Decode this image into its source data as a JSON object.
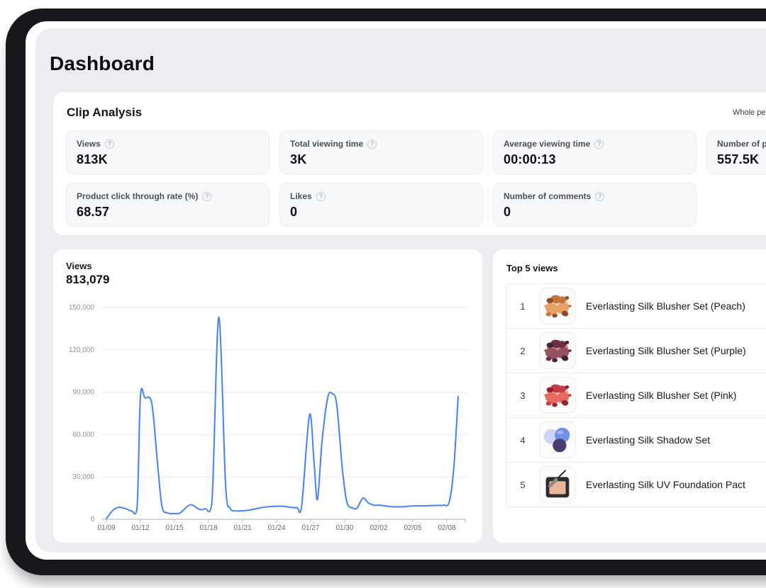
{
  "page": {
    "title": "Dashboard"
  },
  "clip_analysis": {
    "title": "Clip Analysis",
    "period_label": "Whole period",
    "stats": [
      {
        "label": "Views",
        "value": "813K"
      },
      {
        "label": "Total viewing time",
        "value": "3K"
      },
      {
        "label": "Average viewing time",
        "value": "00:00:13"
      },
      {
        "label": "Number of product clicks",
        "value": "557.5K"
      },
      {
        "label": "Product click through rate (%)",
        "value": "68.57"
      },
      {
        "label": "Likes",
        "value": "0"
      },
      {
        "label": "Number of comments",
        "value": "0"
      }
    ]
  },
  "chart_data": {
    "type": "line",
    "title": "Views",
    "total": "813,079",
    "xlabel": "",
    "ylabel": "",
    "x_unit": "days since 01/09",
    "ylim": [
      0,
      150000
    ],
    "xlim": [
      0,
      31.6
    ],
    "grid": true,
    "legend_position": "none",
    "line_color": "#4284f5",
    "grid_color": "#e9ebee",
    "axis_color": "#a9adb4",
    "ytick_color": "#8d929a",
    "xtick_color": "#63676d",
    "yticks": [
      {
        "value": 0,
        "label": "0"
      },
      {
        "value": 30000,
        "label": "30,000"
      },
      {
        "value": 60000,
        "label": "60,000"
      },
      {
        "value": 90000,
        "label": "90,000"
      },
      {
        "value": 120000,
        "label": "120,000"
      },
      {
        "value": 150000,
        "label": "150,000"
      }
    ],
    "xticks": [
      {
        "day": 0,
        "label": "01/09"
      },
      {
        "day": 3,
        "label": "01/12"
      },
      {
        "day": 6,
        "label": "01/15"
      },
      {
        "day": 9,
        "label": "01/18"
      },
      {
        "day": 12,
        "label": "01/21"
      },
      {
        "day": 15,
        "label": "01/24"
      },
      {
        "day": 18,
        "label": "01/27"
      },
      {
        "day": 21,
        "label": "01/30"
      },
      {
        "day": 24,
        "label": "02/02"
      },
      {
        "day": 27,
        "label": "02/05"
      },
      {
        "day": 30,
        "label": "02/08"
      }
    ],
    "series": [
      {
        "name": "Views",
        "points": [
          [
            0,
            500
          ],
          [
            0.6,
            6500
          ],
          [
            1.1,
            8500
          ],
          [
            1.7,
            7500
          ],
          [
            2.2,
            6000
          ],
          [
            2.7,
            8000
          ],
          [
            3.0,
            87000
          ],
          [
            3.4,
            86000
          ],
          [
            4.0,
            82000
          ],
          [
            4.5,
            40000
          ],
          [
            4.9,
            9000
          ],
          [
            5.4,
            4500
          ],
          [
            6.0,
            4000
          ],
          [
            6.5,
            4500
          ],
          [
            7.2,
            9500
          ],
          [
            7.6,
            10000
          ],
          [
            8.2,
            7000
          ],
          [
            8.7,
            7500
          ],
          [
            9.3,
            12000
          ],
          [
            9.9,
            143000
          ],
          [
            10.5,
            25000
          ],
          [
            10.9,
            8000
          ],
          [
            11.4,
            6000
          ],
          [
            12.0,
            6000
          ],
          [
            12.6,
            6500
          ],
          [
            13.2,
            7500
          ],
          [
            13.8,
            8500
          ],
          [
            14.4,
            9000
          ],
          [
            15.0,
            9200
          ],
          [
            15.6,
            9200
          ],
          [
            16.2,
            8500
          ],
          [
            16.8,
            8200
          ],
          [
            17.2,
            9000
          ],
          [
            17.9,
            74000
          ],
          [
            18.3,
            40000
          ],
          [
            18.6,
            14000
          ],
          [
            19.0,
            55000
          ],
          [
            19.5,
            86000
          ],
          [
            19.9,
            89000
          ],
          [
            20.3,
            81000
          ],
          [
            20.8,
            35000
          ],
          [
            21.2,
            12000
          ],
          [
            21.7,
            8000
          ],
          [
            22.1,
            8000
          ],
          [
            22.6,
            15000
          ],
          [
            23.1,
            11500
          ],
          [
            23.6,
            10000
          ],
          [
            24.1,
            10000
          ],
          [
            25.0,
            9000
          ],
          [
            26.0,
            8800
          ],
          [
            27.0,
            9500
          ],
          [
            28.0,
            9500
          ],
          [
            29.0,
            9800
          ],
          [
            29.7,
            10000
          ],
          [
            30.2,
            12000
          ],
          [
            30.6,
            35000
          ],
          [
            31.0,
            87000
          ]
        ]
      }
    ]
  },
  "top5": {
    "title": "Top 5 views",
    "items": [
      {
        "rank": "1",
        "name": "Everlasting Silk Blusher Set (Peach)",
        "thumb_style": "powder",
        "palette": [
          "#f5d2ae",
          "#e8a268",
          "#c4763f",
          "#8f4e26"
        ]
      },
      {
        "rank": "2",
        "name": "Everlasting Silk Blusher Set (Purple)",
        "thumb_style": "powder",
        "palette": [
          "#cf8f9b",
          "#96515f",
          "#6b3040",
          "#472337"
        ]
      },
      {
        "rank": "3",
        "name": "Everlasting Silk Blusher Set (Pink)",
        "thumb_style": "powder",
        "palette": [
          "#f5b5ac",
          "#e66a60",
          "#c43c45",
          "#93242f"
        ]
      },
      {
        "rank": "4",
        "name": "Everlasting Silk Shadow Set",
        "thumb_style": "pans",
        "palette": [
          "#ccd6f2",
          "#7291e9",
          "#4d3d6e"
        ]
      },
      {
        "rank": "5",
        "name": "Everlasting Silk UV Foundation Pact",
        "thumb_style": "compact",
        "palette": [
          "#2c2c30",
          "#e9b69b",
          "#8f8a86"
        ]
      }
    ]
  },
  "colors": {
    "page_bg": "#ebedf0",
    "frame": "#17181b",
    "card_bg": "#ffffff",
    "stat_card_bg": "#f7f8f9",
    "accent_line": "#4284f5"
  }
}
